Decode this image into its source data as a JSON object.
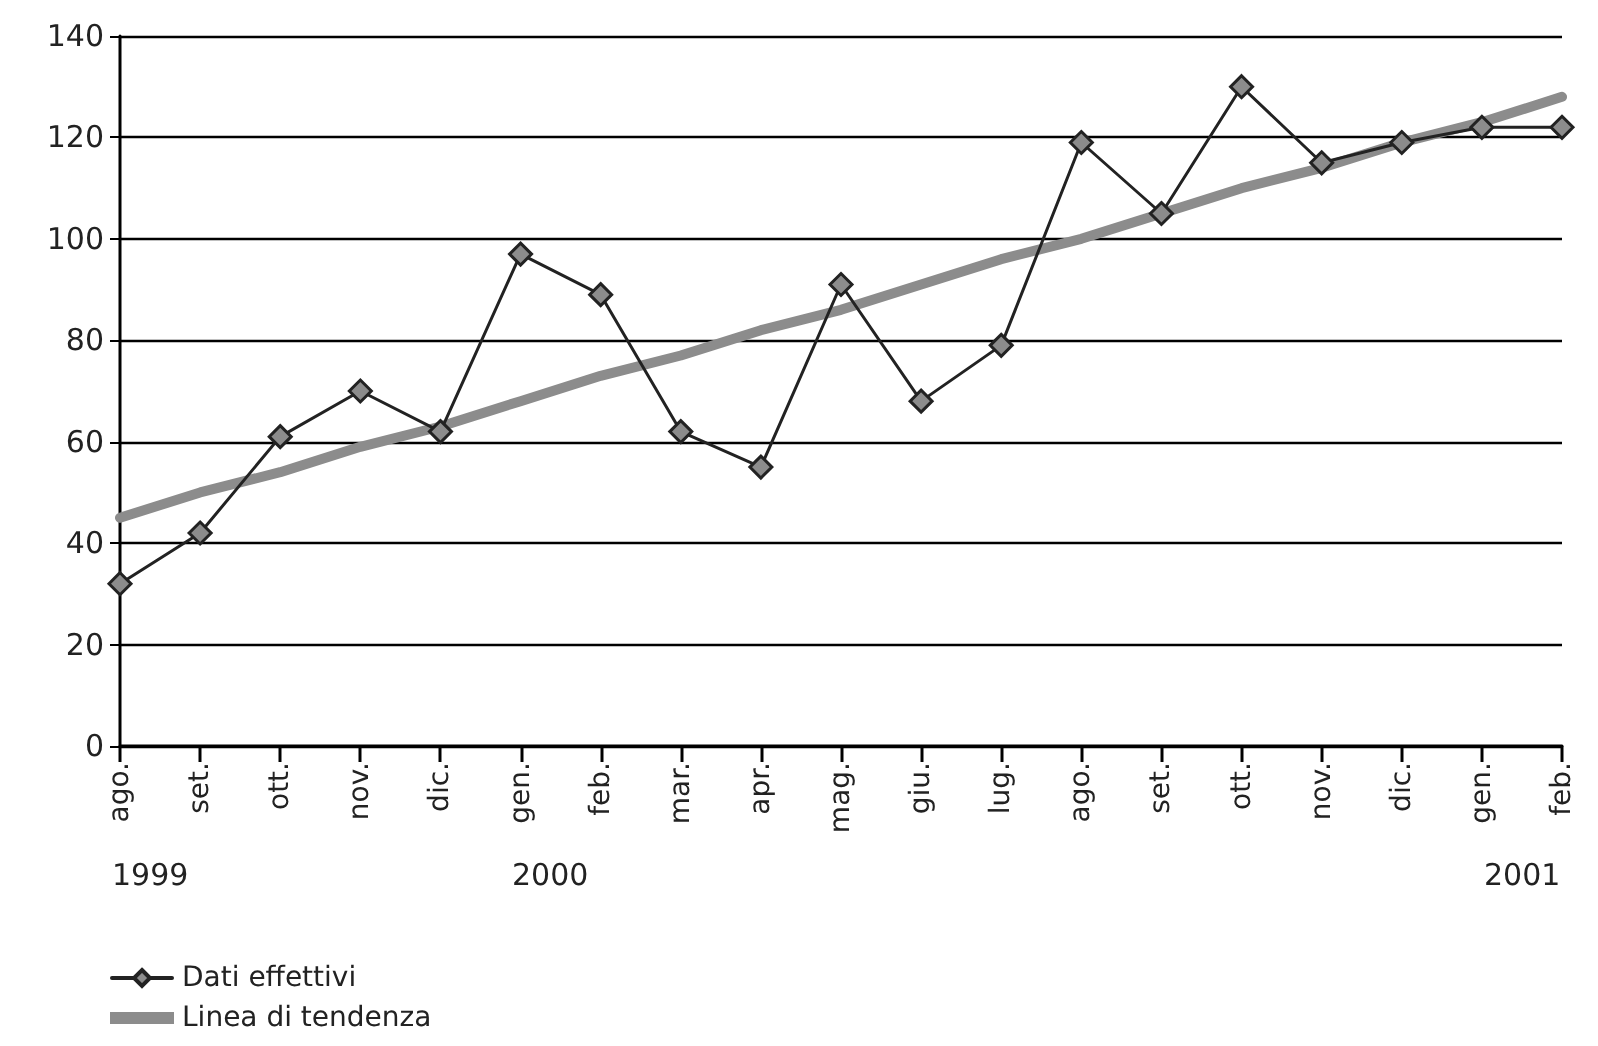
{
  "chart_data": {
    "type": "line",
    "categories": [
      "ago.",
      "set.",
      "ott.",
      "nov.",
      "dic.",
      "gen.",
      "feb.",
      "mar.",
      "apr.",
      "mag.",
      "giu.",
      "lug.",
      "ago.",
      "set.",
      "ott.",
      "nov.",
      "dic.",
      "gen.",
      "feb."
    ],
    "series": [
      {
        "name": "Dati effettivi",
        "color": "#222222",
        "marker": "diamond",
        "values": [
          32,
          42,
          61,
          70,
          62,
          97,
          89,
          62,
          55,
          91,
          68,
          79,
          119,
          105,
          130,
          115,
          119,
          122,
          122
        ]
      },
      {
        "name": "Linea di tendenza",
        "color": "#8c8c8c",
        "marker": "none",
        "values": [
          45,
          50,
          54,
          59,
          63,
          68,
          73,
          77,
          82,
          86,
          91,
          96,
          100,
          105,
          110,
          114,
          119,
          123,
          128
        ]
      }
    ],
    "ylim": [
      0,
      140
    ],
    "yticks": [
      0,
      20,
      40,
      60,
      80,
      100,
      120,
      140
    ],
    "grid": "y",
    "legend": "bottom left",
    "line_style": "solid",
    "annotations": [
      "1999",
      "2000",
      "2001"
    ]
  }
}
